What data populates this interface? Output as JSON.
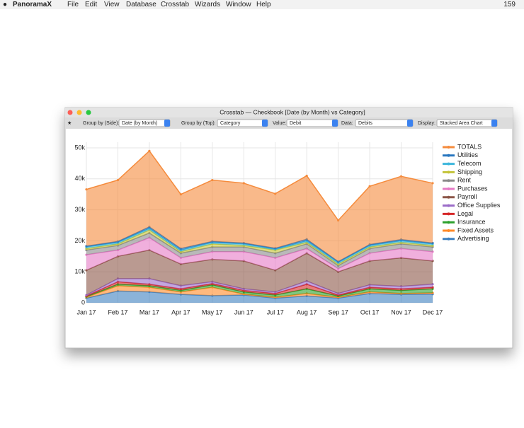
{
  "menu_bar": {
    "app": "PanoramaX",
    "menus": [
      "File",
      "Edit",
      "View",
      "Database",
      "Crosstab",
      "Wizards",
      "Window",
      "Help"
    ],
    "badge": "159"
  },
  "window": {
    "title": "Crosstab — Checkbook [Date (by Month) vs Category]",
    "toolbar": {
      "side_label": "Group by (Side):",
      "side_value": "Date (by Month)",
      "top_label": "Group by (Top):",
      "top_value": "Category",
      "value_label": "Value:",
      "value_value": "Debit",
      "data_label": "Data:",
      "data_value": "Debits",
      "display_label": "Display:",
      "display_value": "Stacked Area Chart"
    }
  },
  "chart_data": {
    "type": "stacked_area",
    "categories": [
      "Jan 17",
      "Feb 17",
      "Mar 17",
      "Apr 17",
      "May 17",
      "Jun 17",
      "Jul 17",
      "Aug 17",
      "Sep 17",
      "Oct 17",
      "Nov 17",
      "Dec 17"
    ],
    "ylim": [
      0,
      50000
    ],
    "yticks": [
      {
        "value": 0,
        "label": "0"
      },
      {
        "value": 10000,
        "label": "10k"
      },
      {
        "value": 20000,
        "label": "20k"
      },
      {
        "value": 30000,
        "label": "30k"
      },
      {
        "value": 40000,
        "label": "40k"
      },
      {
        "value": 50000,
        "label": "50k"
      }
    ],
    "grid": true,
    "legend": "right",
    "series": [
      {
        "name": "TOTALS",
        "color": "#f58b3c",
        "values": [
          18300,
          19800,
          24500,
          17500,
          19800,
          19300,
          17600,
          20500,
          13300,
          18800,
          20400,
          19300
        ]
      },
      {
        "name": "Utilities",
        "color": "#2a78c0",
        "values": [
          300,
          300,
          500,
          500,
          300,
          300,
          300,
          500,
          300,
          300,
          400,
          300
        ]
      },
      {
        "name": "Telecom",
        "color": "#3bb6dc",
        "values": [
          500,
          500,
          500,
          500,
          500,
          500,
          300,
          500,
          500,
          500,
          500,
          500
        ]
      },
      {
        "name": "Shipping",
        "color": "#c4c43a",
        "values": [
          500,
          500,
          1000,
          500,
          1000,
          500,
          1000,
          500,
          500,
          500,
          500,
          500
        ]
      },
      {
        "name": "Rent",
        "color": "#8a8a8a",
        "values": [
          1500,
          1500,
          1500,
          1500,
          1500,
          1500,
          1500,
          1500,
          1000,
          1500,
          1500,
          1500
        ]
      },
      {
        "name": "Purchases",
        "color": "#e67ac6",
        "values": [
          5000,
          2000,
          4000,
          2000,
          2500,
          3000,
          4000,
          1500,
          1000,
          2500,
          3000,
          3000
        ]
      },
      {
        "name": "Payroll",
        "color": "#8c5648",
        "values": [
          8000,
          7200,
          9200,
          7000,
          7200,
          9000,
          7000,
          9000,
          7000,
          7700,
          9200,
          7500
        ]
      },
      {
        "name": "Office Supplies",
        "color": "#9b6cc8",
        "values": [
          300,
          1000,
          1800,
          1000,
          600,
          500,
          500,
          1000,
          500,
          800,
          800,
          1000
        ]
      },
      {
        "name": "Legal",
        "color": "#d62728",
        "values": [
          200,
          800,
          500,
          500,
          400,
          500,
          500,
          1500,
          300,
          500,
          500,
          500
        ]
      },
      {
        "name": "Insurance",
        "color": "#2ca02c",
        "values": [
          200,
          500,
          500,
          500,
          800,
          700,
          700,
          1500,
          400,
          1000,
          1000,
          1300
        ]
      },
      {
        "name": "Fixed Assets",
        "color": "#ff8a28",
        "values": [
          300,
          1700,
          1500,
          800,
          2700,
          300,
          300,
          800,
          300,
          500,
          300,
          400
        ]
      },
      {
        "name": "Advertising",
        "color": "#3d80c0",
        "values": [
          1500,
          3800,
          3500,
          2700,
          2300,
          2500,
          1500,
          2200,
          1500,
          3000,
          2700,
          2800
        ]
      }
    ]
  }
}
